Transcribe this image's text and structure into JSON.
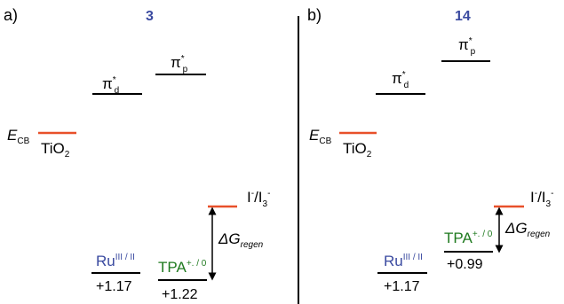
{
  "panels": [
    {
      "letter": "a)",
      "compound": "3",
      "pi_d": {
        "main": "π",
        "sup": "*",
        "sub": "d"
      },
      "pi_p": {
        "main": "π",
        "sup": "*",
        "sub": "p"
      },
      "ecb": {
        "main": "E",
        "sub": "CB"
      },
      "tio2": {
        "main": "TiO",
        "sub": "2"
      },
      "redox": {
        "main": "I",
        "sup1": "-",
        "mid": "/I",
        "sub": "3",
        "sup2": "-"
      },
      "ru": {
        "main": "Ru",
        "sup": "III / II"
      },
      "ru_value": "+1.17",
      "tpa": {
        "main": "TPA",
        "sup": "+. / 0"
      },
      "tpa_value": "+1.22",
      "dg": {
        "main": "ΔG",
        "sub": "regen"
      }
    },
    {
      "letter": "b)",
      "compound": "14",
      "pi_d": {
        "main": "π",
        "sup": "*",
        "sub": "d"
      },
      "pi_p": {
        "main": "π",
        "sup": "*",
        "sub": "p"
      },
      "ecb": {
        "main": "E",
        "sub": "CB"
      },
      "tio2": {
        "main": "TiO",
        "sub": "2"
      },
      "redox": {
        "main": "I",
        "sup1": "-",
        "mid": "/I",
        "sub": "3",
        "sup2": "-"
      },
      "ru": {
        "main": "Ru",
        "sup": "III / II"
      },
      "ru_value": "+1.17",
      "tpa": {
        "main": "TPA",
        "sup": "+. / 0"
      },
      "tpa_value": "+0.99",
      "dg": {
        "main": "ΔG",
        "sub": "regen"
      }
    }
  ],
  "colors": {
    "compound": "#3a4aa0",
    "ru": "#3a4aa0",
    "tpa": "#1f7a1f",
    "orange_level": "#e8502a",
    "black_level": "#000000"
  }
}
